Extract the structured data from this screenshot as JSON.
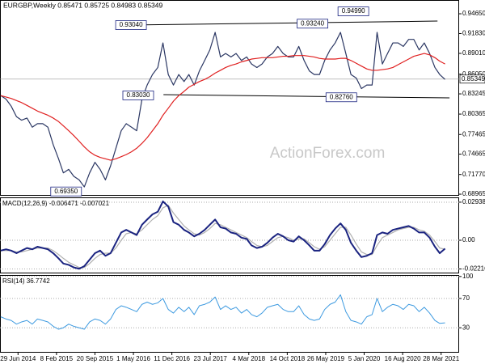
{
  "chart_data": {
    "type": "line",
    "title": "EURGBP,Weekly  0.85471 0.85725 0.84983 0.85349",
    "watermark": "ActionForex.com",
    "xlim": [
      "2014-03-16",
      "2021-07-11"
    ],
    "xticks": [
      {
        "value": "2014-06-29",
        "label": "29 Jun 2014"
      },
      {
        "value": "2015-02-08",
        "label": "8 Feb 2015"
      },
      {
        "value": "2015-09-20",
        "label": "20 Sep 2015"
      },
      {
        "value": "2016-05-01",
        "label": "1 May 2016"
      },
      {
        "value": "2016-12-11",
        "label": "11 Dec 2016"
      },
      {
        "value": "2017-07-23",
        "label": "23 Jul 2017"
      },
      {
        "value": "2018-03-04",
        "label": "4 Mar 2018"
      },
      {
        "value": "2018-10-14",
        "label": "14 Oct 2018"
      },
      {
        "value": "2019-05-26",
        "label": "26 May 2019"
      },
      {
        "value": "2020-01-05",
        "label": "5 Jan 2020"
      },
      {
        "value": "2020-08-16",
        "label": "16 Aug 2020"
      },
      {
        "value": "2021-03-28",
        "label": "28 Mar 2021"
      }
    ],
    "x": [
      "2014-03-20",
      "2014-04-20",
      "2014-05-20",
      "2014-06-20",
      "2014-07-20",
      "2014-08-20",
      "2014-09-20",
      "2014-10-20",
      "2014-11-20",
      "2014-12-20",
      "2015-01-20",
      "2015-02-20",
      "2015-03-20",
      "2015-04-20",
      "2015-05-20",
      "2015-06-20",
      "2015-07-20",
      "2015-08-20",
      "2015-09-20",
      "2015-10-20",
      "2015-11-20",
      "2015-12-20",
      "2016-01-20",
      "2016-02-20",
      "2016-03-20",
      "2016-04-20",
      "2016-05-20",
      "2016-06-20",
      "2016-07-20",
      "2016-08-20",
      "2016-09-20",
      "2016-10-20",
      "2016-11-20",
      "2016-12-20",
      "2017-01-20",
      "2017-02-20",
      "2017-03-20",
      "2017-04-20",
      "2017-05-20",
      "2017-06-20",
      "2017-07-20",
      "2017-08-20",
      "2017-09-20",
      "2017-10-20",
      "2017-11-20",
      "2017-12-20",
      "2018-01-20",
      "2018-02-20",
      "2018-03-20",
      "2018-04-20",
      "2018-05-20",
      "2018-06-20",
      "2018-07-20",
      "2018-08-20",
      "2018-09-20",
      "2018-10-20",
      "2018-11-20",
      "2018-12-20",
      "2019-01-20",
      "2019-02-20",
      "2019-03-20",
      "2019-04-20",
      "2019-05-20",
      "2019-06-20",
      "2019-07-20",
      "2019-08-20",
      "2019-09-20",
      "2019-10-20",
      "2019-11-20",
      "2019-12-20",
      "2020-01-20",
      "2020-02-20",
      "2020-03-20",
      "2020-04-20",
      "2020-05-20",
      "2020-06-20",
      "2020-07-20",
      "2020-08-20",
      "2020-09-20",
      "2020-10-20",
      "2020-11-20",
      "2020-12-20",
      "2021-01-20",
      "2021-02-20",
      "2021-03-20",
      "2021-04-20"
    ],
    "panels": [
      {
        "ylim": [
          0.6874,
          0.9661
        ],
        "grid": false,
        "yticks": [
          {
            "value": 0.9465,
            "label": "0.94650"
          },
          {
            "value": 0.9183,
            "label": "0.91830"
          },
          {
            "value": 0.8901,
            "label": "0.89010"
          },
          {
            "value": 0.8605,
            "label": "0.86050"
          },
          {
            "value": 0.83245,
            "label": "0.83245"
          },
          {
            "value": 0.80365,
            "label": "0.80365"
          },
          {
            "value": 0.77465,
            "label": "0.77465"
          },
          {
            "value": 0.74665,
            "label": "0.74665"
          },
          {
            "value": 0.7177,
            "label": "0.71770"
          },
          {
            "value": 0.68965,
            "label": "0.68965"
          }
        ],
        "last_price": 0.85349,
        "series": [
          {
            "color": "#2b3763",
            "width": 1.2,
            "values": [
              0.83,
              0.825,
              0.815,
              0.8,
              0.795,
              0.798,
              0.785,
              0.79,
              0.79,
              0.785,
              0.76,
              0.74,
              0.72,
              0.725,
              0.715,
              0.71,
              0.7,
              0.72,
              0.735,
              0.725,
              0.71,
              0.73,
              0.755,
              0.78,
              0.79,
              0.785,
              0.78,
              0.825,
              0.845,
              0.86,
              0.87,
              0.905,
              0.86,
              0.845,
              0.86,
              0.85,
              0.86,
              0.845,
              0.865,
              0.88,
              0.895,
              0.92,
              0.885,
              0.89,
              0.885,
              0.89,
              0.88,
              0.885,
              0.875,
              0.87,
              0.875,
              0.885,
              0.89,
              0.9,
              0.89,
              0.885,
              0.885,
              0.9,
              0.88,
              0.865,
              0.86,
              0.86,
              0.88,
              0.895,
              0.905,
              0.92,
              0.89,
              0.86,
              0.855,
              0.84,
              0.845,
              0.845,
              0.92,
              0.875,
              0.89,
              0.905,
              0.905,
              0.9,
              0.91,
              0.91,
              0.895,
              0.905,
              0.89,
              0.87,
              0.86,
              0.853
            ]
          },
          {
            "color": "#e02020",
            "width": 1.2,
            "values": [
              0.83,
              0.828,
              0.826,
              0.823,
              0.82,
              0.816,
              0.812,
              0.808,
              0.805,
              0.802,
              0.798,
              0.793,
              0.787,
              0.78,
              0.773,
              0.765,
              0.757,
              0.75,
              0.745,
              0.742,
              0.74,
              0.738,
              0.74,
              0.743,
              0.746,
              0.75,
              0.755,
              0.762,
              0.77,
              0.78,
              0.79,
              0.802,
              0.812,
              0.822,
              0.83,
              0.836,
              0.842,
              0.846,
              0.85,
              0.853,
              0.857,
              0.862,
              0.866,
              0.87,
              0.873,
              0.875,
              0.878,
              0.88,
              0.882,
              0.883,
              0.884,
              0.884,
              0.884,
              0.885,
              0.886,
              0.886,
              0.887,
              0.887,
              0.887,
              0.886,
              0.885,
              0.883,
              0.882,
              0.882,
              0.882,
              0.883,
              0.883,
              0.88,
              0.876,
              0.872,
              0.868,
              0.866,
              0.866,
              0.867,
              0.868,
              0.87,
              0.874,
              0.878,
              0.882,
              0.886,
              0.888,
              0.89,
              0.888,
              0.884,
              0.879,
              0.875
            ]
          }
        ],
        "trendlines": [
          {
            "x": [
              "2016-03-27",
              "2021-03-07"
            ],
            "values": [
              0.9304,
              0.9361
            ]
          },
          {
            "x": [
              "2016-10-23",
              "2021-05-16"
            ],
            "values": [
              0.8313,
              0.8267
            ]
          }
        ],
        "annotations": [
          {
            "value": 0.6935,
            "label": "0.69350",
            "x": "2015-04-05"
          },
          {
            "value": 0.9304,
            "label": "0.93040",
            "x": "2016-04-17"
          },
          {
            "value": 0.8303,
            "label": "0.83030",
            "x": "2016-05-29"
          },
          {
            "value": 0.9324,
            "label": "0.93240",
            "x": "2019-03-10"
          },
          {
            "value": 0.8276,
            "label": "0.82760",
            "x": "2019-08-25"
          },
          {
            "value": 0.9499,
            "label": "0.94990",
            "x": "2019-11-03"
          }
        ]
      },
      {
        "title": "MACD(12,26,9) -0.006471 -0.007021",
        "ylim": [
          -0.0256,
          0.0331
        ],
        "grid": true,
        "yticks": [
          0.029387,
          {
            "value": 0,
            "label": "0.00"
          },
          -0.022161
        ],
        "series": [
          {
            "color": "#b0b0b0",
            "width": 1.2,
            "values": [
              -0.008,
              -0.008,
              -0.008,
              -0.009,
              -0.009,
              -0.008,
              -0.007,
              -0.006,
              -0.006,
              -0.006,
              -0.008,
              -0.011,
              -0.014,
              -0.017,
              -0.019,
              -0.021,
              -0.021,
              -0.018,
              -0.014,
              -0.011,
              -0.01,
              -0.01,
              -0.006,
              0.0,
              0.005,
              0.006,
              0.005,
              0.008,
              0.012,
              0.016,
              0.019,
              0.025,
              0.027,
              0.021,
              0.016,
              0.011,
              0.008,
              0.005,
              0.004,
              0.006,
              0.009,
              0.013,
              0.012,
              0.01,
              0.008,
              0.006,
              0.004,
              0.002,
              -0.001,
              -0.004,
              -0.005,
              -0.004,
              -0.001,
              0.002,
              0.003,
              0.002,
              0.0,
              0.001,
              0.001,
              -0.002,
              -0.005,
              -0.007,
              -0.005,
              0.0,
              0.005,
              0.01,
              0.01,
              0.004,
              -0.003,
              -0.009,
              -0.011,
              -0.011,
              -0.004,
              0.002,
              0.004,
              0.006,
              0.008,
              0.009,
              0.01,
              0.01,
              0.008,
              0.007,
              0.004,
              -0.001,
              -0.006,
              -0.007021
            ]
          },
          {
            "color": "#1a2380",
            "width": 2,
            "values": [
              -0.008,
              -0.007,
              -0.008,
              -0.01,
              -0.008,
              -0.006,
              -0.007,
              -0.005,
              -0.006,
              -0.007,
              -0.01,
              -0.014,
              -0.018,
              -0.019,
              -0.021,
              -0.022,
              -0.02,
              -0.015,
              -0.01,
              -0.008,
              -0.012,
              -0.01,
              -0.002,
              0.006,
              0.008,
              0.006,
              0.004,
              0.012,
              0.016,
              0.02,
              0.022,
              0.03,
              0.026,
              0.014,
              0.012,
              0.008,
              0.006,
              0.003,
              0.005,
              0.008,
              0.012,
              0.016,
              0.01,
              0.009,
              0.006,
              0.005,
              0.002,
              0.001,
              -0.004,
              -0.006,
              -0.005,
              -0.002,
              0.002,
              0.005,
              0.003,
              0.0,
              -0.001,
              0.003,
              0.0,
              -0.004,
              -0.008,
              -0.008,
              -0.003,
              0.004,
              0.009,
              0.013,
              0.008,
              -0.002,
              -0.008,
              -0.013,
              -0.012,
              -0.01,
              0.004,
              0.006,
              0.005,
              0.008,
              0.009,
              0.01,
              0.011,
              0.009,
              0.006,
              0.006,
              0.002,
              -0.005,
              -0.01,
              -0.006471
            ]
          }
        ]
      },
      {
        "title": "RSI(14) 36.7742",
        "ylim": [
          -4,
          102
        ],
        "grid": true,
        "yticks": [
          100,
          70,
          30
        ],
        "series": [
          {
            "color": "#3d9ae0",
            "width": 1,
            "values": [
              45,
              42,
              40,
              35,
              38,
              40,
              35,
              42,
              40,
              38,
              32,
              28,
              30,
              35,
              32,
              30,
              28,
              38,
              42,
              40,
              35,
              42,
              55,
              60,
              58,
              55,
              52,
              62,
              65,
              62,
              64,
              70,
              55,
              50,
              58,
              52,
              58,
              48,
              60,
              62,
              65,
              72,
              55,
              60,
              55,
              58,
              50,
              55,
              48,
              45,
              50,
              58,
              60,
              62,
              55,
              52,
              52,
              60,
              48,
              42,
              40,
              42,
              55,
              62,
              65,
              75,
              52,
              40,
              38,
              35,
              45,
              48,
              70,
              52,
              58,
              62,
              60,
              55,
              62,
              60,
              52,
              58,
              50,
              40,
              36,
              36.7742
            ]
          }
        ]
      }
    ]
  }
}
